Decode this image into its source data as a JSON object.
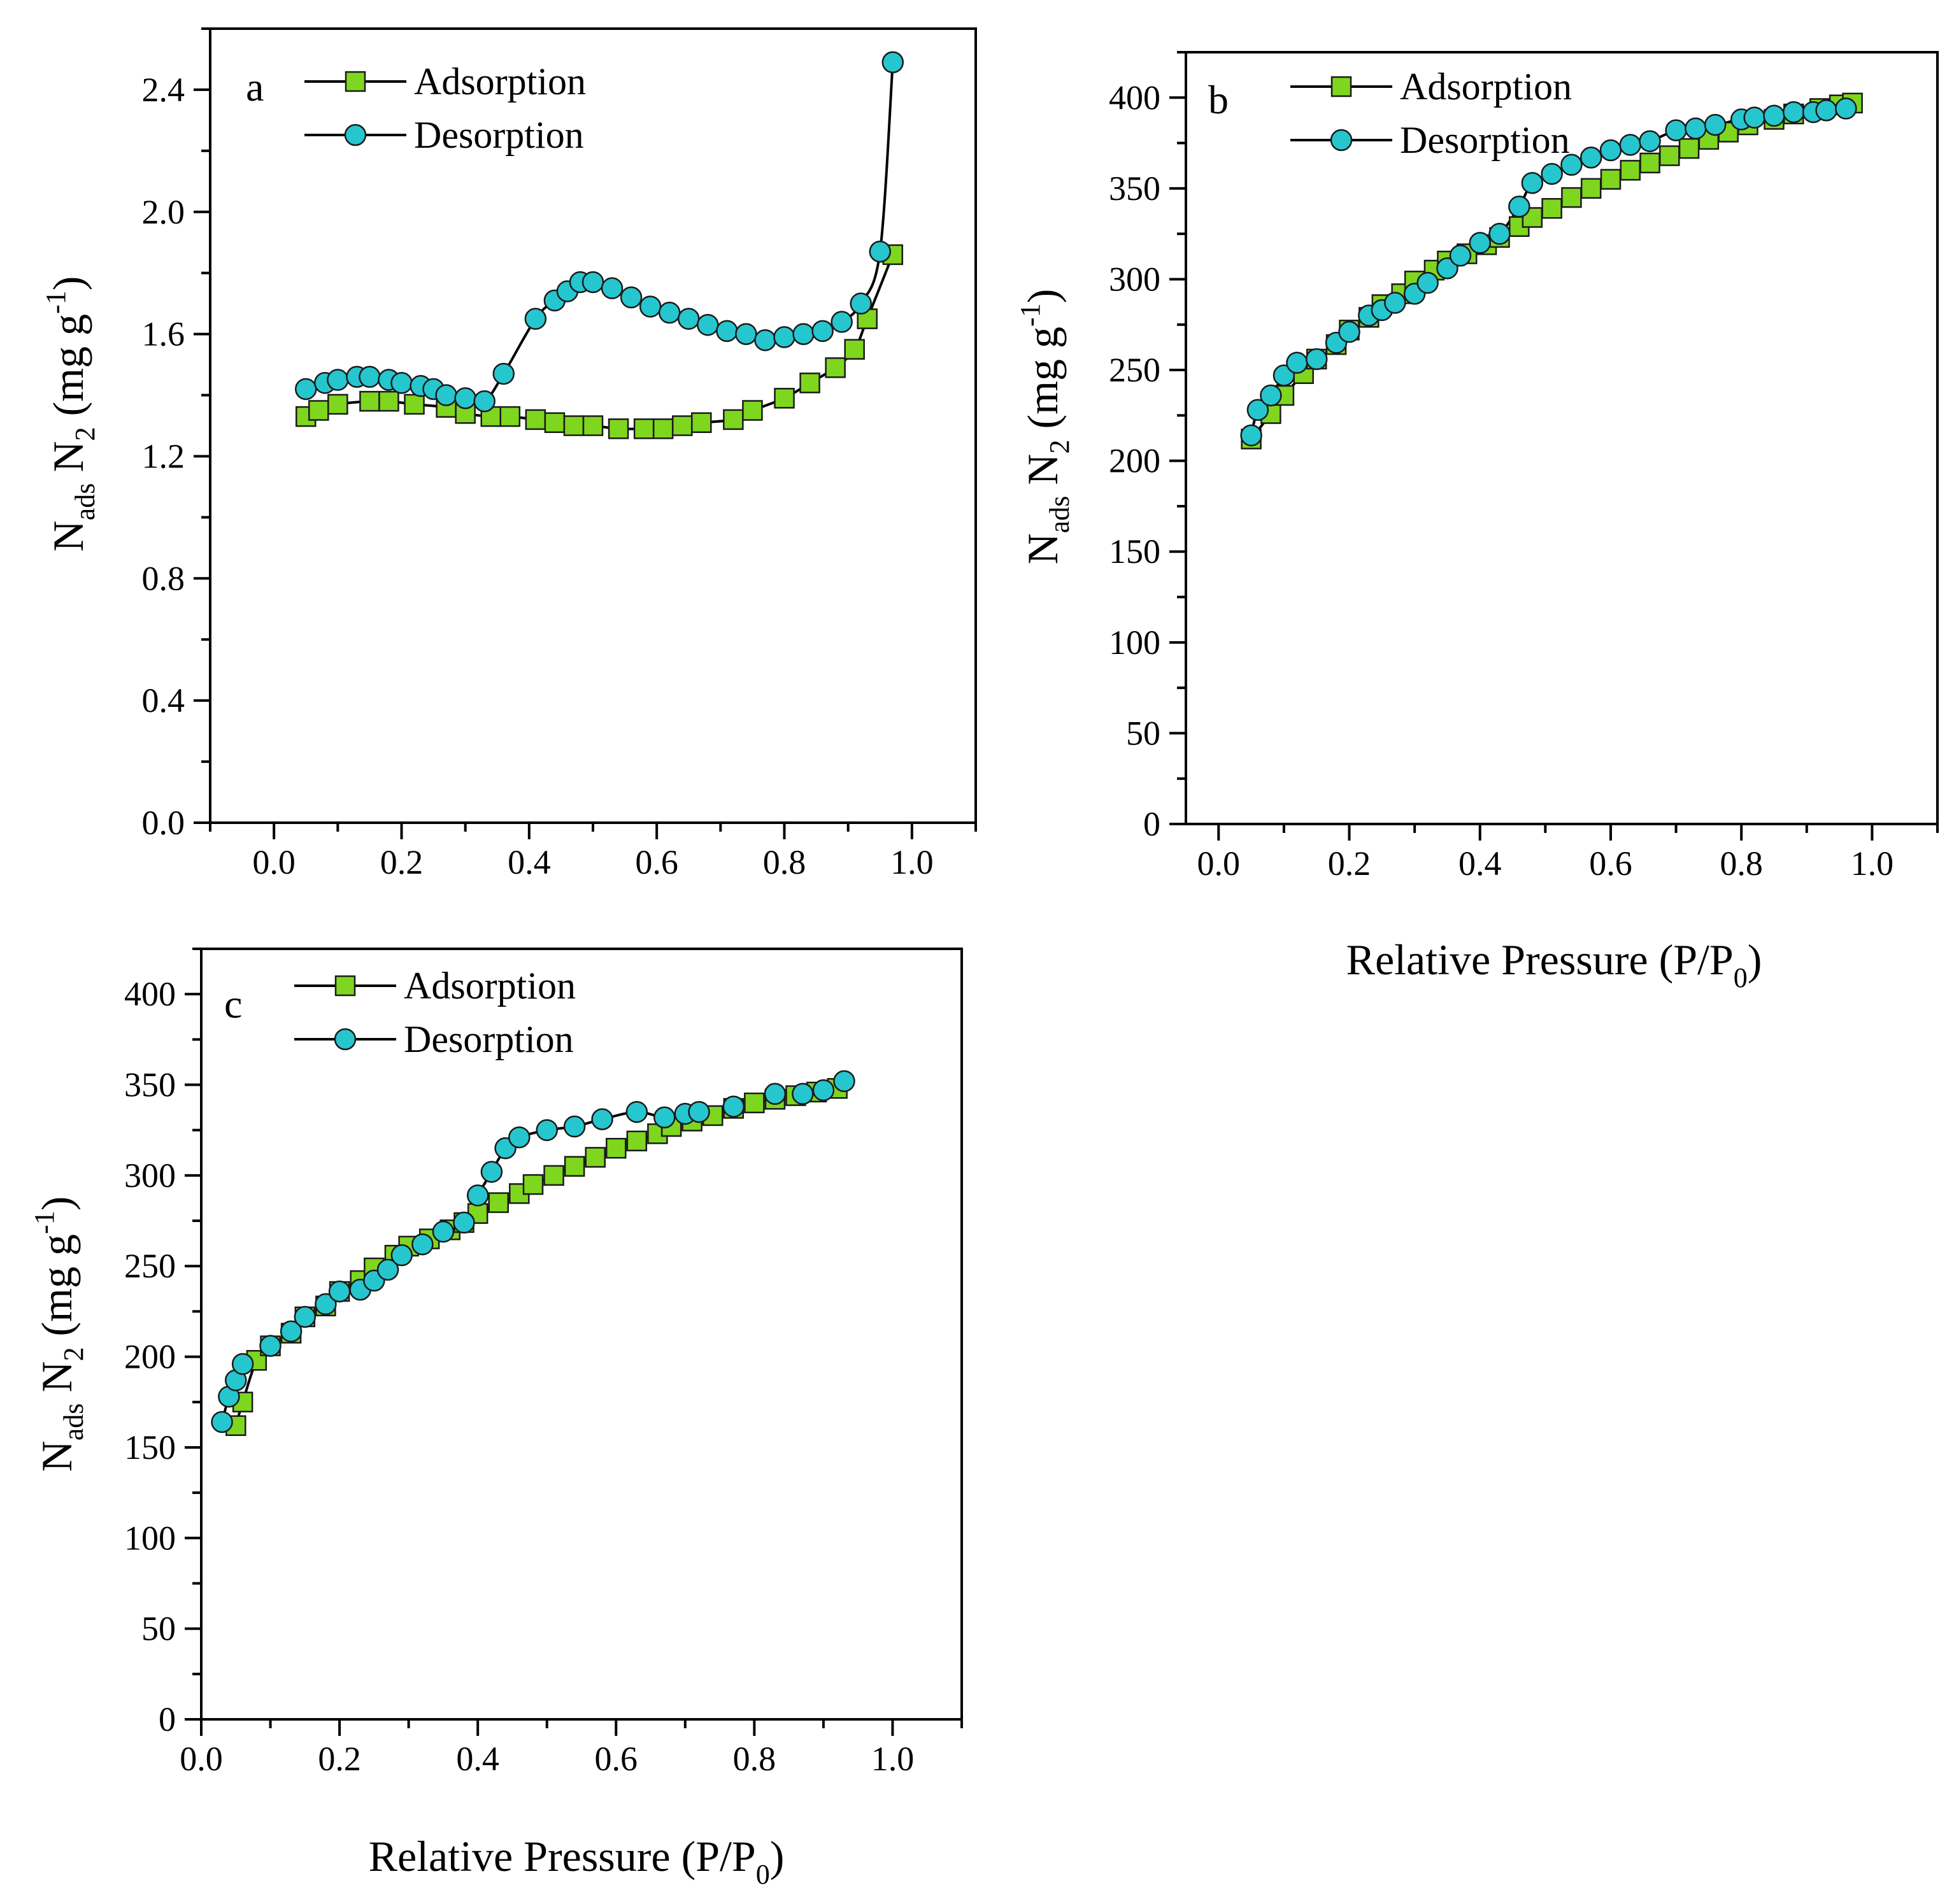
{
  "chart_data": [
    {
      "type": "scatter",
      "panel": "a",
      "panel_label": "a",
      "ylabel": {
        "base": "N",
        "sub": "ads",
        "main": " N",
        "sub2": "2",
        "unit": " (mg g",
        "sup": "-1",
        "close": ")"
      },
      "xlabel": null,
      "xlim": [
        -0.1,
        1.1
      ],
      "ylim": [
        0.0,
        2.6
      ],
      "x_ticks": [
        0.0,
        0.2,
        0.4,
        0.6,
        0.8,
        1.0
      ],
      "x_tick_labels": [
        "0.0",
        "0.2",
        "0.4",
        "0.6",
        "0.8",
        "1.0"
      ],
      "y_ticks": [
        0.0,
        0.4,
        0.8,
        1.2,
        1.6,
        2.0,
        2.4
      ],
      "y_tick_labels": [
        "0.0",
        "0.4",
        "0.8",
        "1.2",
        "1.6",
        "2.0",
        "2.4"
      ],
      "legend": [
        "Adsorption",
        "Desorption"
      ],
      "series": [
        {
          "name": "Adsorption",
          "marker": "square",
          "color": "#7fd61f",
          "x": [
            0.05,
            0.07,
            0.1,
            0.15,
            0.18,
            0.22,
            0.27,
            0.3,
            0.34,
            0.37,
            0.41,
            0.44,
            0.47,
            0.5,
            0.54,
            0.58,
            0.61,
            0.64,
            0.67,
            0.72,
            0.75,
            0.8,
            0.84,
            0.88,
            0.91,
            0.93,
            0.97
          ],
          "y": [
            1.33,
            1.35,
            1.37,
            1.38,
            1.38,
            1.37,
            1.36,
            1.34,
            1.33,
            1.33,
            1.32,
            1.31,
            1.3,
            1.3,
            1.29,
            1.29,
            1.29,
            1.3,
            1.31,
            1.32,
            1.35,
            1.39,
            1.44,
            1.49,
            1.55,
            1.65,
            1.86
          ]
        },
        {
          "name": "Desorption",
          "marker": "circle",
          "color": "#26c6cf",
          "x": [
            0.05,
            0.08,
            0.1,
            0.13,
            0.15,
            0.18,
            0.2,
            0.23,
            0.25,
            0.27,
            0.3,
            0.33,
            0.36,
            0.41,
            0.44,
            0.46,
            0.48,
            0.5,
            0.53,
            0.56,
            0.59,
            0.62,
            0.65,
            0.68,
            0.71,
            0.74,
            0.77,
            0.8,
            0.83,
            0.86,
            0.89,
            0.92,
            0.95,
            0.97
          ],
          "y": [
            1.42,
            1.44,
            1.45,
            1.46,
            1.46,
            1.45,
            1.44,
            1.43,
            1.42,
            1.4,
            1.39,
            1.38,
            1.47,
            1.65,
            1.71,
            1.74,
            1.77,
            1.77,
            1.75,
            1.72,
            1.69,
            1.67,
            1.65,
            1.63,
            1.61,
            1.6,
            1.58,
            1.59,
            1.6,
            1.61,
            1.64,
            1.7,
            1.87,
            2.49
          ]
        }
      ]
    },
    {
      "type": "scatter",
      "panel": "b",
      "panel_label": "b",
      "ylabel": {
        "base": "N",
        "sub": "ads",
        "main": " N",
        "sub2": "2",
        "unit": " (mg g",
        "sup": "-1",
        "close": ")"
      },
      "xlabel": {
        "main": "Relative Pressure (P/P",
        "sub": "0",
        "close": ")"
      },
      "xlim": [
        -0.05,
        1.1
      ],
      "ylim": [
        0,
        425
      ],
      "x_ticks": [
        0.0,
        0.2,
        0.4,
        0.6,
        0.8,
        1.0
      ],
      "x_tick_labels": [
        "0.0",
        "0.2",
        "0.4",
        "0.6",
        "0.8",
        "1.0"
      ],
      "y_ticks": [
        0,
        50,
        100,
        150,
        200,
        250,
        300,
        350,
        400
      ],
      "y_tick_labels": [
        "0",
        "50",
        "100",
        "150",
        "200",
        "250",
        "300",
        "350",
        "400"
      ],
      "legend": [
        "Adsorption",
        "Desorption"
      ],
      "series": [
        {
          "name": "Adsorption",
          "marker": "square",
          "color": "#7fd61f",
          "x": [
            0.05,
            0.08,
            0.1,
            0.13,
            0.15,
            0.18,
            0.2,
            0.23,
            0.25,
            0.28,
            0.3,
            0.33,
            0.35,
            0.38,
            0.41,
            0.43,
            0.46,
            0.48,
            0.51,
            0.54,
            0.57,
            0.6,
            0.63,
            0.66,
            0.69,
            0.72,
            0.75,
            0.78,
            0.81,
            0.85,
            0.88,
            0.92,
            0.95,
            0.97
          ],
          "y": [
            212,
            226,
            236,
            248,
            256,
            264,
            272,
            279,
            286,
            292,
            299,
            305,
            310,
            314,
            319,
            323,
            329,
            334,
            339,
            345,
            350,
            355,
            360,
            364,
            368,
            372,
            377,
            381,
            385,
            388,
            391,
            394,
            396,
            397
          ]
        },
        {
          "name": "Desorption",
          "marker": "circle",
          "color": "#26c6cf",
          "x": [
            0.05,
            0.06,
            0.08,
            0.1,
            0.12,
            0.15,
            0.18,
            0.2,
            0.23,
            0.25,
            0.27,
            0.3,
            0.32,
            0.35,
            0.37,
            0.4,
            0.43,
            0.46,
            0.48,
            0.51,
            0.54,
            0.57,
            0.6,
            0.63,
            0.66,
            0.7,
            0.73,
            0.76,
            0.8,
            0.82,
            0.85,
            0.88,
            0.91,
            0.93,
            0.96
          ],
          "y": [
            214,
            228,
            236,
            247,
            254,
            256,
            265,
            271,
            280,
            283,
            287,
            292,
            298,
            306,
            313,
            320,
            325,
            340,
            353,
            358,
            363,
            367,
            371,
            374,
            376,
            382,
            383,
            385,
            388,
            389,
            390,
            392,
            392,
            393,
            394
          ]
        }
      ]
    },
    {
      "type": "scatter",
      "panel": "c",
      "panel_label": "c",
      "ylabel": {
        "base": "N",
        "sub": "ads",
        "main": " N",
        "sub2": "2",
        "unit": " (mg g",
        "sup": "-1",
        "close": ")"
      },
      "xlabel": {
        "main": "Relative Pressure (P/P",
        "sub": "0",
        "close": ")"
      },
      "xlim": [
        0.0,
        1.1
      ],
      "ylim": [
        0,
        425
      ],
      "x_ticks": [
        0.0,
        0.2,
        0.4,
        0.6,
        0.8,
        1.0
      ],
      "x_tick_labels": [
        "0.0",
        "0.2",
        "0.4",
        "0.6",
        "0.8",
        "1.0"
      ],
      "y_ticks": [
        0,
        50,
        100,
        150,
        200,
        250,
        300,
        350,
        400
      ],
      "y_tick_labels": [
        "0",
        "50",
        "100",
        "150",
        "200",
        "250",
        "300",
        "350",
        "400"
      ],
      "legend": [
        "Adsorption",
        "Desorption"
      ],
      "series": [
        {
          "name": "Adsorption",
          "marker": "square",
          "color": "#7fd61f",
          "x": [
            0.05,
            0.06,
            0.08,
            0.1,
            0.13,
            0.15,
            0.18,
            0.2,
            0.23,
            0.25,
            0.28,
            0.3,
            0.33,
            0.36,
            0.38,
            0.4,
            0.43,
            0.46,
            0.48,
            0.51,
            0.54,
            0.57,
            0.6,
            0.63,
            0.66,
            0.68,
            0.71,
            0.74,
            0.77,
            0.8,
            0.83,
            0.86,
            0.89,
            0.92
          ],
          "y": [
            162,
            175,
            198,
            206,
            213,
            222,
            228,
            236,
            242,
            249,
            256,
            261,
            265,
            270,
            274,
            279,
            285,
            290,
            295,
            300,
            305,
            310,
            315,
            319,
            323,
            327,
            330,
            333,
            337,
            340,
            342,
            344,
            346,
            348
          ]
        },
        {
          "name": "Desorption",
          "marker": "circle",
          "color": "#26c6cf",
          "x": [
            0.03,
            0.04,
            0.05,
            0.06,
            0.1,
            0.13,
            0.15,
            0.18,
            0.2,
            0.23,
            0.25,
            0.27,
            0.29,
            0.32,
            0.35,
            0.38,
            0.4,
            0.42,
            0.44,
            0.46,
            0.5,
            0.54,
            0.58,
            0.63,
            0.67,
            0.7,
            0.72,
            0.77,
            0.83,
            0.87,
            0.9,
            0.93
          ],
          "y": [
            164,
            178,
            187,
            196,
            206,
            214,
            222,
            229,
            236,
            237,
            242,
            248,
            256,
            262,
            269,
            274,
            289,
            302,
            315,
            321,
            325,
            327,
            331,
            335,
            332,
            334,
            335,
            338,
            345,
            345,
            347,
            352
          ]
        }
      ]
    }
  ]
}
